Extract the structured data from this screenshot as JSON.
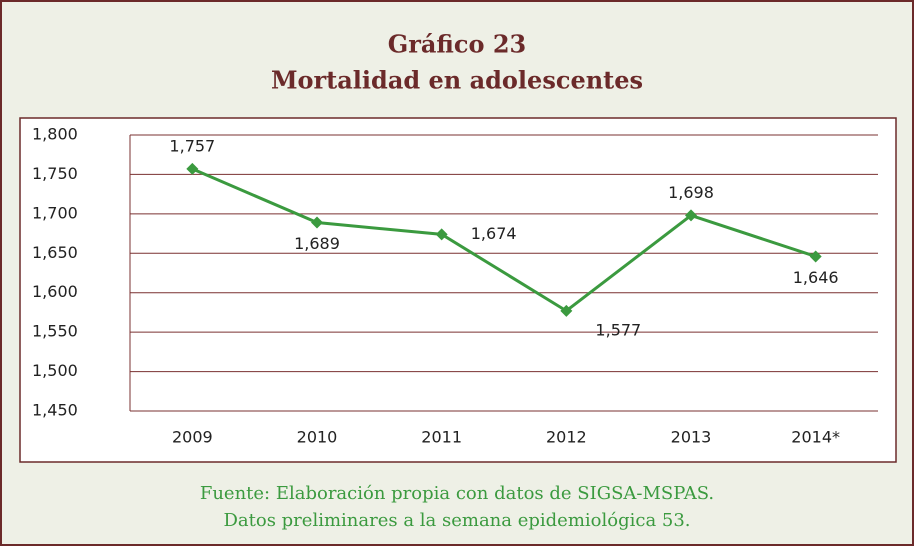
{
  "chart_data": {
    "type": "line",
    "title": "Gráfico 23",
    "subtitle": "Mortalidad en adolescentes",
    "categories": [
      "2009",
      "2010",
      "2011",
      "2012",
      "2013",
      "2014*"
    ],
    "series": [
      {
        "name": "Mortalidad",
        "color": "#3b9a3f",
        "values": [
          1757,
          1689,
          1674,
          1577,
          1698,
          1646
        ],
        "value_labels": [
          "1,757",
          "1,689",
          "1,674",
          "1,577",
          "1,698",
          "1,646"
        ]
      }
    ],
    "ylim": [
      1450,
      1800
    ],
    "yticks": [
      {
        "value": 1450,
        "label": "1,450"
      },
      {
        "value": 1500,
        "label": "1,500"
      },
      {
        "value": 1550,
        "label": "1,550"
      },
      {
        "value": 1600,
        "label": "1,600"
      },
      {
        "value": 1650,
        "label": "1,650"
      },
      {
        "value": 1700,
        "label": "1,700"
      },
      {
        "value": 1750,
        "label": "1,750"
      },
      {
        "value": 1800,
        "label": "1,800"
      }
    ],
    "grid": true,
    "source": [
      "Fuente: Elaboración propia con datos de SIGSA-MSPAS.",
      "Datos preliminares a la semana epidemiológica 53."
    ]
  }
}
